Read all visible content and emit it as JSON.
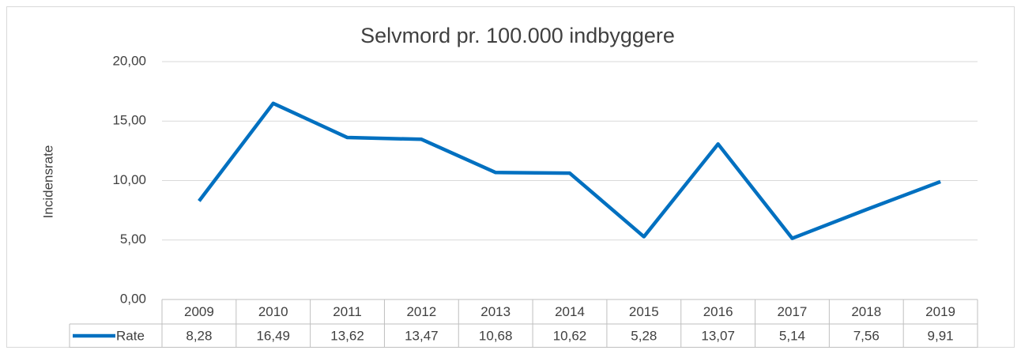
{
  "chart_data": {
    "type": "line",
    "title": "Selvmord pr. 100.000 indbyggere",
    "y_label": "Incidensrate",
    "categories": [
      "2009",
      "2010",
      "2011",
      "2012",
      "2013",
      "2014",
      "2015",
      "2016",
      "2017",
      "2018",
      "2019"
    ],
    "series": [
      {
        "name": "Rate",
        "color": "#0070c0",
        "values": [
          8.28,
          16.49,
          13.62,
          13.47,
          10.68,
          10.62,
          5.28,
          13.07,
          5.14,
          7.56,
          9.91
        ],
        "value_labels": [
          "8,28",
          "16,49",
          "13,62",
          "13,47",
          "10,68",
          "10,62",
          "5,28",
          "13,07",
          "5,14",
          "7,56",
          "9,91"
        ]
      }
    ],
    "ylim": [
      0,
      20
    ],
    "yticks": [
      {
        "value": 0,
        "label": "0,00"
      },
      {
        "value": 5,
        "label": "5,00"
      },
      {
        "value": 10,
        "label": "10,00"
      },
      {
        "value": 15,
        "label": "15,00"
      },
      {
        "value": 20,
        "label": "20,00"
      }
    ],
    "grid": true,
    "data_table": true
  }
}
